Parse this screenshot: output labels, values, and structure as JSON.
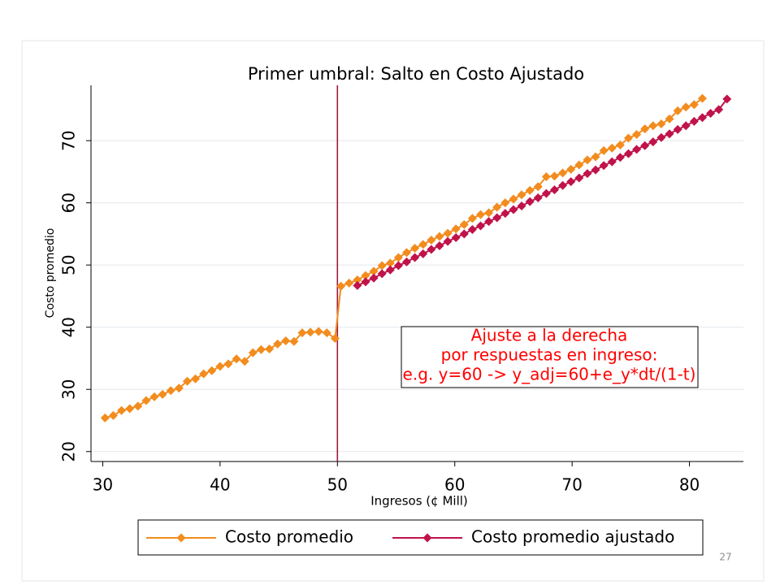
{
  "chart_data": {
    "type": "line",
    "title": "Primer umbral: Salto en Costo Ajustado",
    "x_label": "Ingresos (¢ Mill)",
    "y_label": "Costo promedio",
    "xlim": [
      29,
      84.6
    ],
    "ylim": [
      18.4,
      78.9
    ],
    "xticks": [
      30,
      40,
      50,
      60,
      70,
      80
    ],
    "yticks": [
      20,
      30,
      40,
      50,
      60,
      70
    ],
    "grid": true,
    "vline": {
      "value": 50,
      "color": "#9e1b3c"
    },
    "annotation": {
      "lines": [
        "Ajuste a la derecha",
        "por respuestas en ingreso:",
        "e.g. y=60 -> y_adj=60+e_y*dt/(1-t)"
      ],
      "color": "#ff0000"
    },
    "legend": "bottom",
    "page_number": "27",
    "series": [
      {
        "name": "Costo promedio",
        "color": "#f28c1e",
        "x": [
          30.2,
          30.9,
          31.6,
          32.3,
          33.0,
          33.7,
          34.4,
          35.1,
          35.8,
          36.5,
          37.2,
          37.9,
          38.6,
          39.3,
          40.0,
          40.7,
          41.4,
          42.1,
          42.8,
          43.5,
          44.2,
          44.9,
          45.6,
          46.3,
          47.0,
          47.7,
          48.4,
          49.1,
          49.8,
          50.3,
          51.0,
          51.7,
          52.4,
          53.1,
          53.8,
          54.5,
          55.2,
          55.9,
          56.6,
          57.3,
          58.0,
          58.7,
          59.4,
          60.1,
          60.8,
          61.5,
          62.2,
          62.9,
          63.6,
          64.3,
          65.0,
          65.7,
          66.4,
          67.1,
          67.8,
          68.5,
          69.2,
          69.9,
          70.6,
          71.3,
          72.0,
          72.7,
          73.4,
          74.1,
          74.8,
          75.5,
          76.2,
          76.9,
          77.6,
          78.3,
          79.0,
          79.7,
          80.4,
          81.1
        ],
        "values": [
          25.4,
          25.8,
          26.6,
          26.9,
          27.3,
          28.2,
          28.8,
          29.2,
          29.8,
          30.2,
          31.3,
          31.7,
          32.5,
          33.0,
          33.7,
          34.1,
          34.9,
          34.5,
          35.9,
          36.4,
          36.5,
          37.3,
          37.8,
          37.7,
          39.1,
          39.2,
          39.3,
          39.1,
          38.2,
          46.6,
          47.1,
          47.6,
          48.3,
          49.0,
          49.9,
          50.3,
          51.2,
          52.0,
          52.7,
          53.3,
          54.0,
          54.6,
          55.1,
          55.8,
          56.5,
          57.5,
          58.1,
          58.4,
          59.3,
          60.0,
          60.6,
          61.3,
          62.0,
          62.6,
          64.2,
          64.3,
          64.8,
          65.4,
          66.1,
          66.9,
          67.4,
          68.4,
          68.8,
          69.3,
          70.4,
          71.0,
          71.9,
          72.4,
          72.7,
          73.5,
          74.8,
          75.4,
          75.8,
          76.8
        ]
      },
      {
        "name": "Costo promedio ajustado",
        "color": "#c0134a",
        "x": [
          51.7,
          52.4,
          53.1,
          53.8,
          54.5,
          55.2,
          55.9,
          56.6,
          57.3,
          58.0,
          58.7,
          59.4,
          60.1,
          60.8,
          61.5,
          62.2,
          62.9,
          63.6,
          64.3,
          65.0,
          65.7,
          66.4,
          67.1,
          67.8,
          68.5,
          69.2,
          69.9,
          70.6,
          71.3,
          72.0,
          72.7,
          73.4,
          74.1,
          74.8,
          75.5,
          76.2,
          76.9,
          77.6,
          78.3,
          79.0,
          79.7,
          80.4,
          81.1,
          81.8,
          82.5,
          83.2
        ],
        "values": [
          46.7,
          47.3,
          47.9,
          48.6,
          49.2,
          49.9,
          50.5,
          51.2,
          51.8,
          52.5,
          53.1,
          53.8,
          54.4,
          55.0,
          55.7,
          56.3,
          57.0,
          57.6,
          58.3,
          58.9,
          59.5,
          60.2,
          60.8,
          61.5,
          62.1,
          62.8,
          63.4,
          64.0,
          64.7,
          65.3,
          66.0,
          66.6,
          67.3,
          67.9,
          68.6,
          69.2,
          69.8,
          70.5,
          71.1,
          71.8,
          72.4,
          73.1,
          73.7,
          74.4,
          75.0,
          76.7
        ]
      }
    ]
  }
}
